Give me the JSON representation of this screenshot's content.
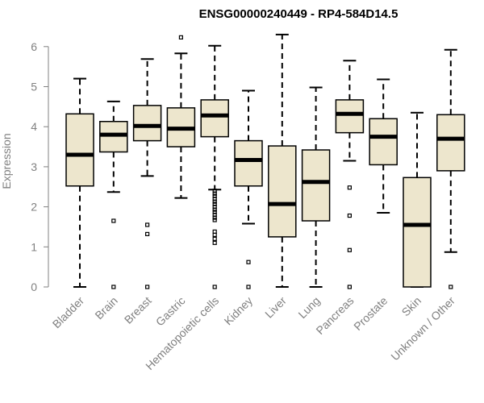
{
  "chart_data": {
    "type": "box",
    "title": "ENSG00000240449 - RP4-584D14.5",
    "xlabel": "",
    "ylabel": "Expression",
    "ylim": [
      0,
      6.3
    ],
    "yticks": [
      "0",
      "1",
      "2",
      "3",
      "4",
      "5",
      "6"
    ],
    "grid": false,
    "colors": {
      "box_fill": "#ede6cd",
      "stroke": "#000000",
      "axis_text": "#808080"
    },
    "categories": [
      "Bladder",
      "Brain",
      "Breast",
      "Gastric",
      "Hematopoietic cells",
      "Kidney",
      "Liver",
      "Lung",
      "Pancreas",
      "Prostate",
      "Skin",
      "Unknown / Other"
    ],
    "boxes": [
      {
        "category": "Bladder",
        "min": 0.0,
        "q1": 2.52,
        "median": 3.3,
        "q3": 4.32,
        "max": 5.2,
        "outliers": []
      },
      {
        "category": "Brain",
        "min": 2.37,
        "q1": 3.37,
        "median": 3.8,
        "q3": 4.13,
        "max": 4.63,
        "outliers": [
          1.65,
          0.0
        ]
      },
      {
        "category": "Breast",
        "min": 2.77,
        "q1": 3.65,
        "median": 4.02,
        "q3": 4.53,
        "max": 5.69,
        "outliers": [
          1.55,
          1.32,
          0.0
        ]
      },
      {
        "category": "Gastric",
        "min": 2.22,
        "q1": 3.5,
        "median": 3.95,
        "q3": 4.47,
        "max": 5.83,
        "outliers": [
          6.23
        ]
      },
      {
        "category": "Hematopoietic cells",
        "min": 2.43,
        "q1": 3.75,
        "median": 4.28,
        "q3": 4.67,
        "max": 6.02,
        "outliers": [
          2.4,
          2.33,
          2.27,
          2.2,
          2.13,
          2.07,
          2.0,
          1.93,
          1.87,
          1.8,
          1.73,
          1.67,
          1.38,
          1.3,
          1.2,
          1.1,
          0.0
        ]
      },
      {
        "category": "Kidney",
        "min": 1.58,
        "q1": 2.52,
        "median": 3.17,
        "q3": 3.65,
        "max": 4.9,
        "outliers": [
          0.62,
          0.0
        ]
      },
      {
        "category": "Liver",
        "min": 0.0,
        "q1": 1.25,
        "median": 2.07,
        "q3": 3.52,
        "max": 6.3,
        "outliers": []
      },
      {
        "category": "Lung",
        "min": 0.0,
        "q1": 1.65,
        "median": 2.62,
        "q3": 3.42,
        "max": 4.98,
        "outliers": []
      },
      {
        "category": "Pancreas",
        "min": 3.15,
        "q1": 3.85,
        "median": 4.32,
        "q3": 4.67,
        "max": 5.65,
        "outliers": [
          2.48,
          1.78,
          0.92,
          0.0
        ]
      },
      {
        "category": "Prostate",
        "min": 1.85,
        "q1": 3.05,
        "median": 3.75,
        "q3": 4.2,
        "max": 5.18,
        "outliers": []
      },
      {
        "category": "Skin",
        "min": 0.0,
        "q1": 0.0,
        "median": 1.55,
        "q3": 2.73,
        "max": 4.35,
        "outliers": []
      },
      {
        "category": "Unknown / Other",
        "min": 0.87,
        "q1": 2.9,
        "median": 3.7,
        "q3": 4.3,
        "max": 5.92,
        "outliers": [
          0.0
        ]
      }
    ]
  }
}
